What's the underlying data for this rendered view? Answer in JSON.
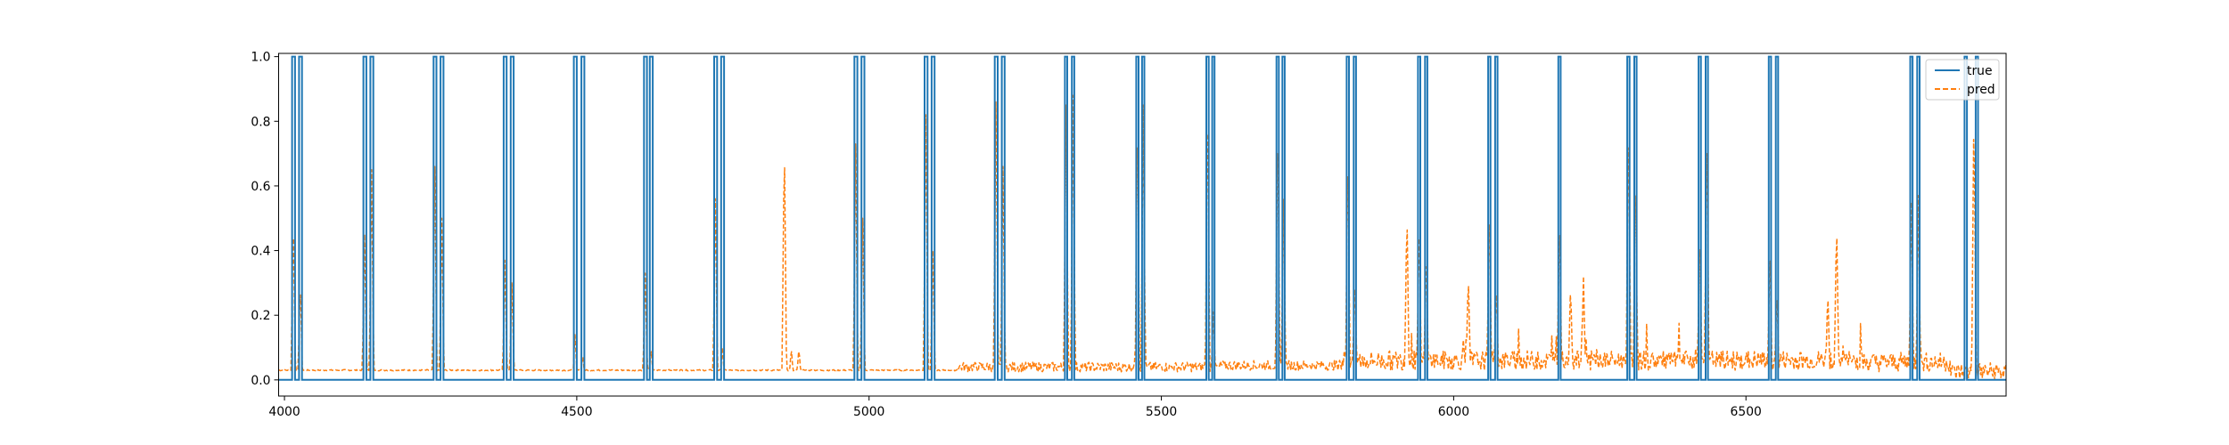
{
  "chart_data": {
    "type": "line",
    "title": "",
    "xlabel": "",
    "ylabel": "",
    "xlim": [
      3990,
      6945
    ],
    "ylim": [
      -0.05,
      1.01
    ],
    "grid": false,
    "legend_position": "top-right",
    "xticks": [
      4000,
      4500,
      5000,
      5500,
      6000,
      6500
    ],
    "xtick_labels": [
      "4000",
      "4500",
      "5000",
      "5500",
      "6000",
      "6500"
    ],
    "yticks": [
      0.0,
      0.2,
      0.4,
      0.6,
      0.8,
      1.0
    ],
    "ytick_labels": [
      "0.0",
      "0.2",
      "0.4",
      "0.6",
      "0.8",
      "1.0"
    ],
    "series": [
      {
        "name": "true",
        "style": "solid",
        "color": "#1f77b4",
        "baseline": 0.0,
        "pulses": [
          [
            4013,
            4018
          ],
          [
            4025,
            4030
          ],
          [
            4135,
            4140
          ],
          [
            4147,
            4152
          ],
          [
            4255,
            4260
          ],
          [
            4267,
            4272
          ],
          [
            4375,
            4380
          ],
          [
            4387,
            4392
          ],
          [
            4495,
            4500
          ],
          [
            4508,
            4513
          ],
          [
            4615,
            4620
          ],
          [
            4625,
            4630
          ],
          [
            4735,
            4740
          ],
          [
            4747,
            4752
          ],
          [
            4975,
            4980
          ],
          [
            4987,
            4992
          ],
          [
            5095,
            5100
          ],
          [
            5107,
            5112
          ],
          [
            5215,
            5220
          ],
          [
            5227,
            5232
          ],
          [
            5335,
            5339
          ],
          [
            5347,
            5351
          ],
          [
            5457,
            5461
          ],
          [
            5467,
            5471
          ],
          [
            5577,
            5581
          ],
          [
            5587,
            5591
          ],
          [
            5697,
            5701
          ],
          [
            5707,
            5711
          ],
          [
            5817,
            5821
          ],
          [
            5829,
            5833
          ],
          [
            5939,
            5943
          ],
          [
            5951,
            5955
          ],
          [
            6059,
            6063
          ],
          [
            6071,
            6075
          ],
          [
            6179,
            6183
          ],
          [
            6297,
            6301
          ],
          [
            6309,
            6313
          ],
          [
            6419,
            6423
          ],
          [
            6431,
            6435
          ],
          [
            6539,
            6543
          ],
          [
            6551,
            6555
          ],
          [
            6781,
            6785
          ],
          [
            6793,
            6797
          ],
          [
            6874,
            6878
          ],
          [
            6893,
            6897
          ]
        ]
      },
      {
        "name": "pred",
        "style": "dashed",
        "color": "#ff7f0e",
        "x_range": [
          3990,
          6945
        ],
        "spikes": [
          {
            "x": 4015,
            "y": 0.5
          },
          {
            "x": 4027,
            "y": 0.3
          },
          {
            "x": 4137,
            "y": 0.45
          },
          {
            "x": 4149,
            "y": 0.65
          },
          {
            "x": 4257,
            "y": 0.66
          },
          {
            "x": 4269,
            "y": 0.5
          },
          {
            "x": 4377,
            "y": 0.37
          },
          {
            "x": 4389,
            "y": 0.3
          },
          {
            "x": 4497,
            "y": 0.14
          },
          {
            "x": 4510,
            "y": 0.08
          },
          {
            "x": 4617,
            "y": 0.33
          },
          {
            "x": 4627,
            "y": 0.1
          },
          {
            "x": 4737,
            "y": 0.56
          },
          {
            "x": 4749,
            "y": 0.1
          },
          {
            "x": 4855,
            "y": 0.75
          },
          {
            "x": 4867,
            "y": 0.1
          },
          {
            "x": 4880,
            "y": 0.1
          },
          {
            "x": 4977,
            "y": 0.73
          },
          {
            "x": 4989,
            "y": 0.5
          },
          {
            "x": 5097,
            "y": 0.82
          },
          {
            "x": 5109,
            "y": 0.4
          },
          {
            "x": 5217,
            "y": 0.86
          },
          {
            "x": 5229,
            "y": 0.66
          },
          {
            "x": 5337,
            "y": 0.85
          },
          {
            "x": 5349,
            "y": 0.88
          },
          {
            "x": 5459,
            "y": 0.82
          },
          {
            "x": 5469,
            "y": 0.85
          },
          {
            "x": 5579,
            "y": 0.87
          },
          {
            "x": 5589,
            "y": 0.21
          },
          {
            "x": 5699,
            "y": 0.8
          },
          {
            "x": 5709,
            "y": 0.56
          },
          {
            "x": 5819,
            "y": 0.72
          },
          {
            "x": 5831,
            "y": 0.32
          },
          {
            "x": 5941,
            "y": 0.5
          },
          {
            "x": 5953,
            "y": 0.4
          },
          {
            "x": 5920,
            "y": 0.53
          },
          {
            "x": 6025,
            "y": 0.33
          },
          {
            "x": 6061,
            "y": 0.55
          },
          {
            "x": 6073,
            "y": 0.3
          },
          {
            "x": 6181,
            "y": 0.51
          },
          {
            "x": 6200,
            "y": 0.3
          },
          {
            "x": 6222,
            "y": 0.32
          },
          {
            "x": 6299,
            "y": 0.82
          },
          {
            "x": 6311,
            "y": 0.65
          },
          {
            "x": 6421,
            "y": 0.46
          },
          {
            "x": 6433,
            "y": 0.8
          },
          {
            "x": 6541,
            "y": 0.42
          },
          {
            "x": 6553,
            "y": 0.28
          },
          {
            "x": 6655,
            "y": 0.5
          },
          {
            "x": 6640,
            "y": 0.28
          },
          {
            "x": 6783,
            "y": 0.55
          },
          {
            "x": 6795,
            "y": 0.57
          },
          {
            "x": 6890,
            "y": 0.85
          }
        ]
      }
    ]
  }
}
